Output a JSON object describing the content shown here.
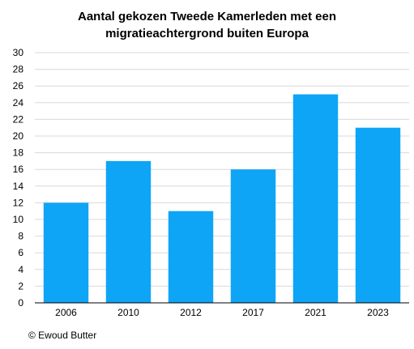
{
  "chart_data": {
    "type": "bar",
    "title_lines": [
      "Aantal gekozen Tweede Kamerleden met een",
      "migratieachtergrond buiten Europa"
    ],
    "categories": [
      "2006",
      "2010",
      "2012",
      "2017",
      "2021",
      "2023"
    ],
    "values": [
      12,
      17,
      11,
      16,
      25,
      21
    ],
    "ylim": [
      0,
      30
    ],
    "yticks": [
      0,
      2,
      4,
      6,
      8,
      10,
      12,
      14,
      16,
      18,
      20,
      22,
      24,
      26,
      28,
      30
    ],
    "xlabel": "",
    "ylabel": "",
    "grid": true,
    "bar_color": "#0ea5f7",
    "grid_color": "#d9d9d9"
  },
  "footer": {
    "credit": "© Ewoud Butter"
  }
}
